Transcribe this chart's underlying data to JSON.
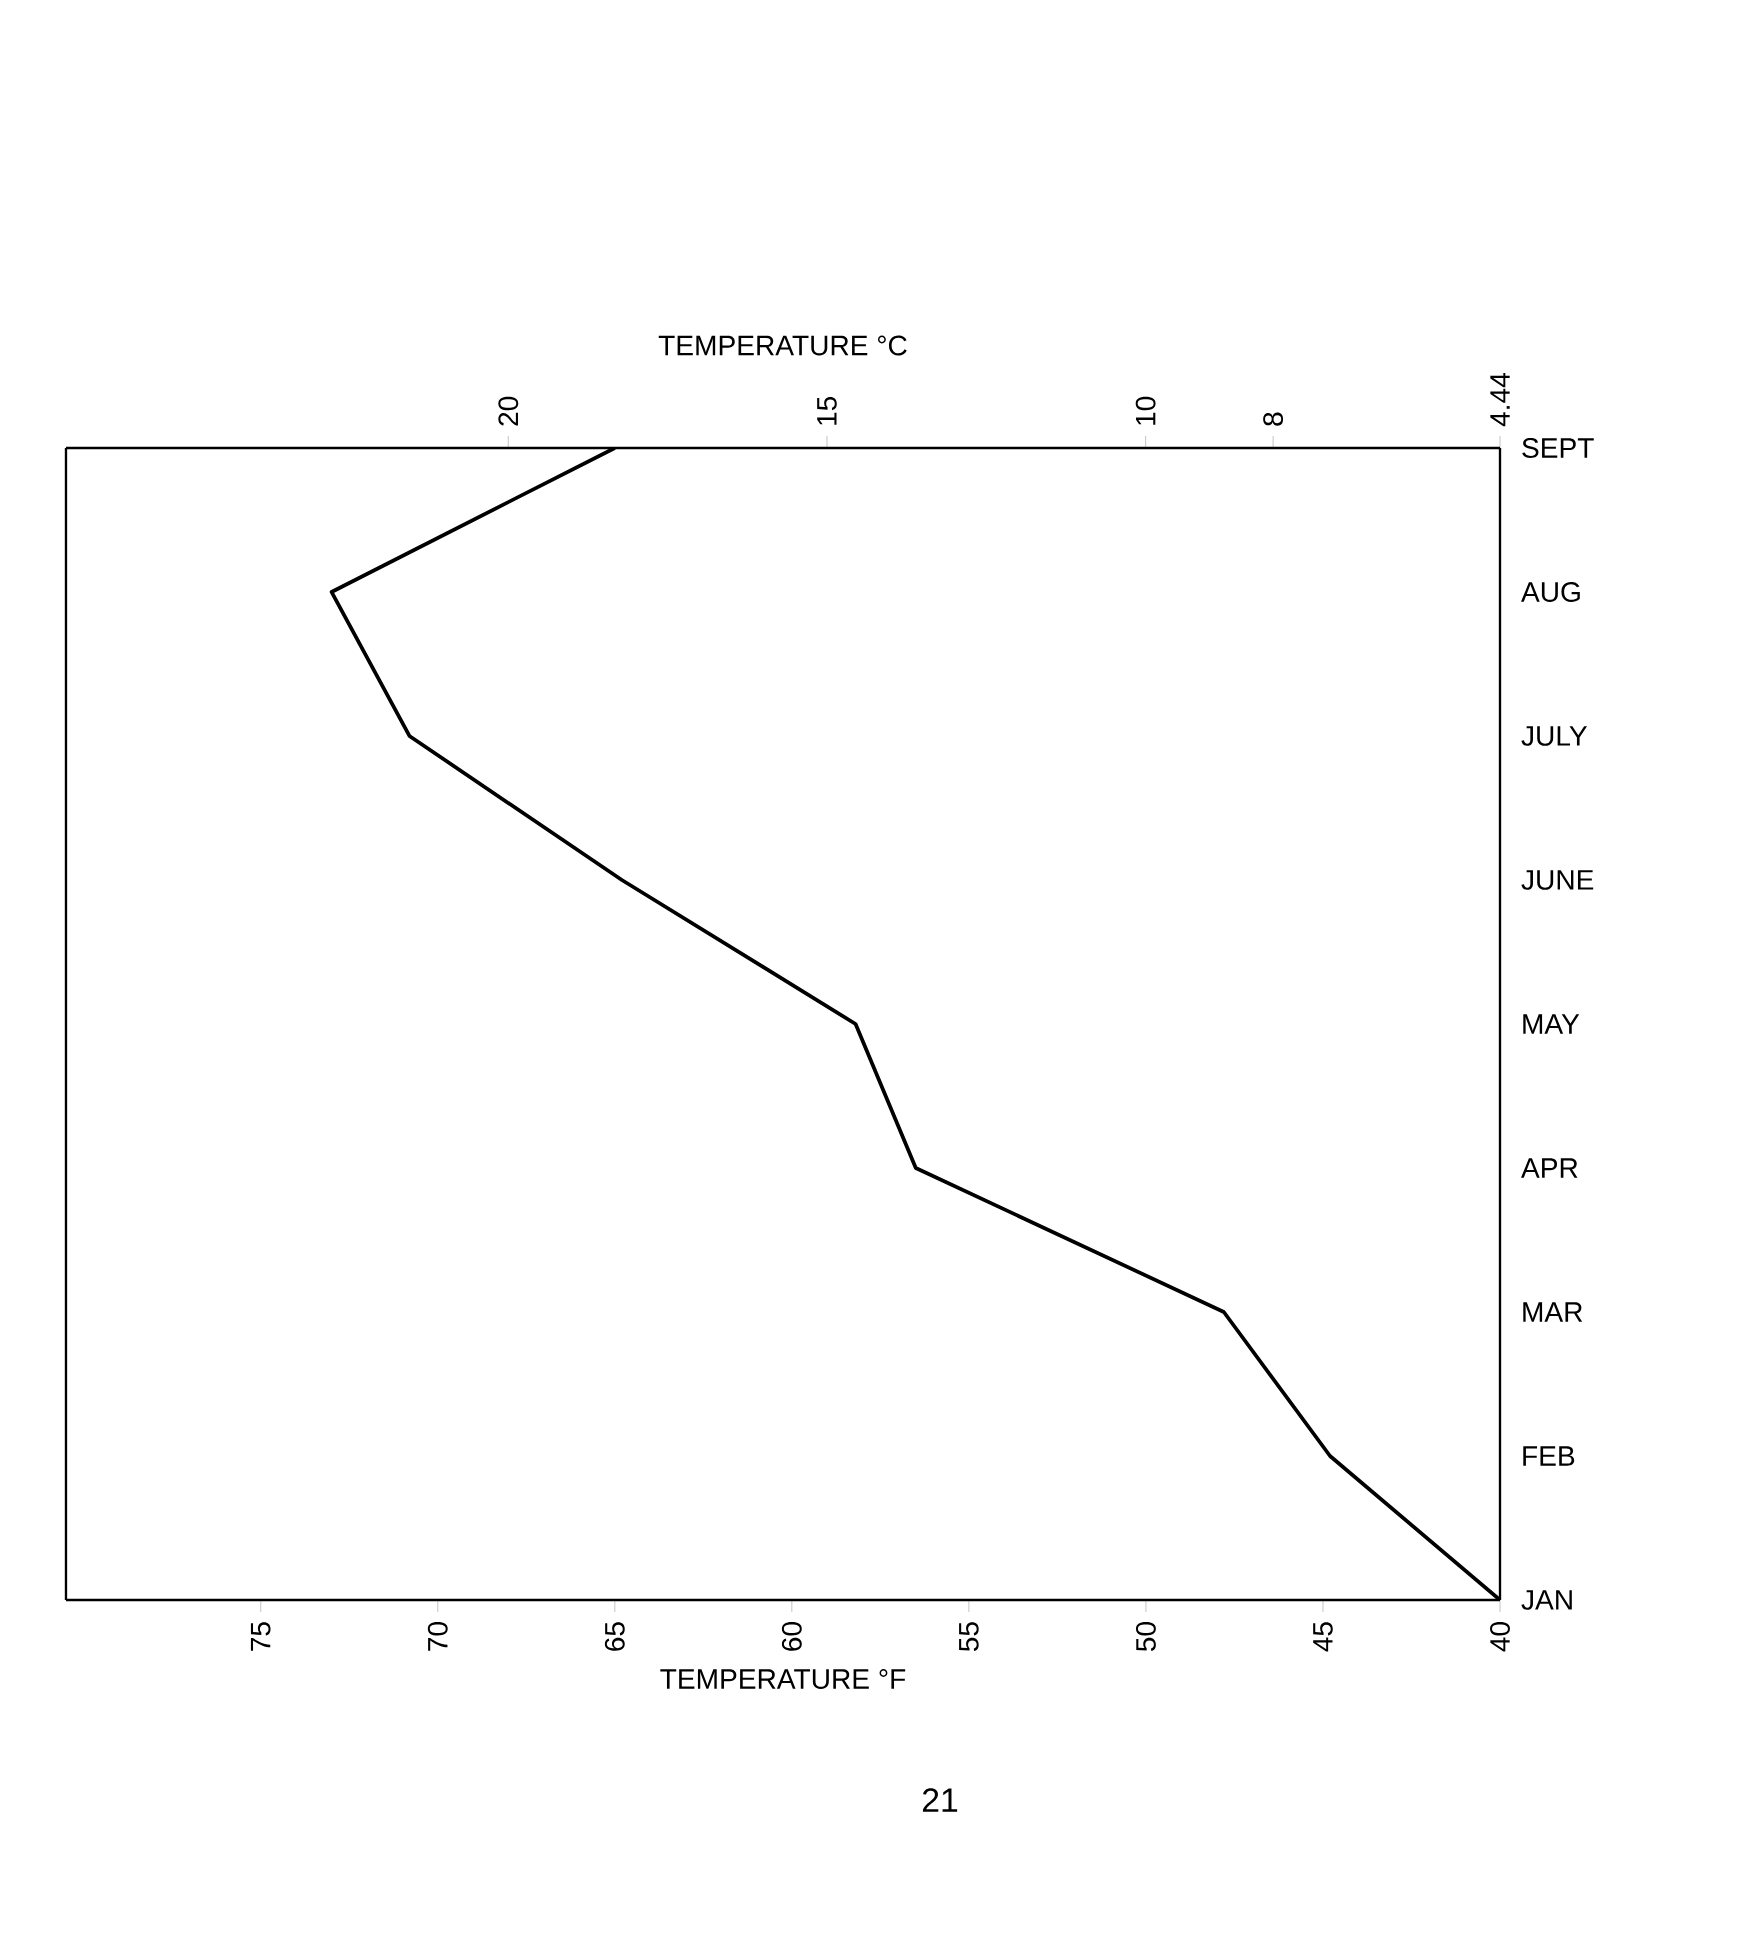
{
  "chart_data": {
    "type": "line",
    "orientation": "horizontal",
    "categories": [
      "SEPT",
      "AUG",
      "JULY",
      "JUNE",
      "MAY",
      "APR",
      "MAR",
      "FEB",
      "JAN"
    ],
    "values": [
      65,
      73,
      70.8,
      64.8,
      58.2,
      56.5,
      47.8,
      44.8,
      40
    ],
    "color": "#000000",
    "marker": "none",
    "line_style": "solid",
    "xlabel": "TEMPERATURE °F",
    "x2label": "TEMPERATURE °C",
    "xlim": [
      80.5,
      40
    ],
    "xticks": [
      75,
      70,
      65,
      60,
      55,
      50,
      45,
      40
    ],
    "x2lim": [
      26.94,
      4.44
    ],
    "x2ticks": [
      20,
      15,
      10,
      8,
      4.44
    ],
    "annotations": [
      "21"
    ]
  }
}
